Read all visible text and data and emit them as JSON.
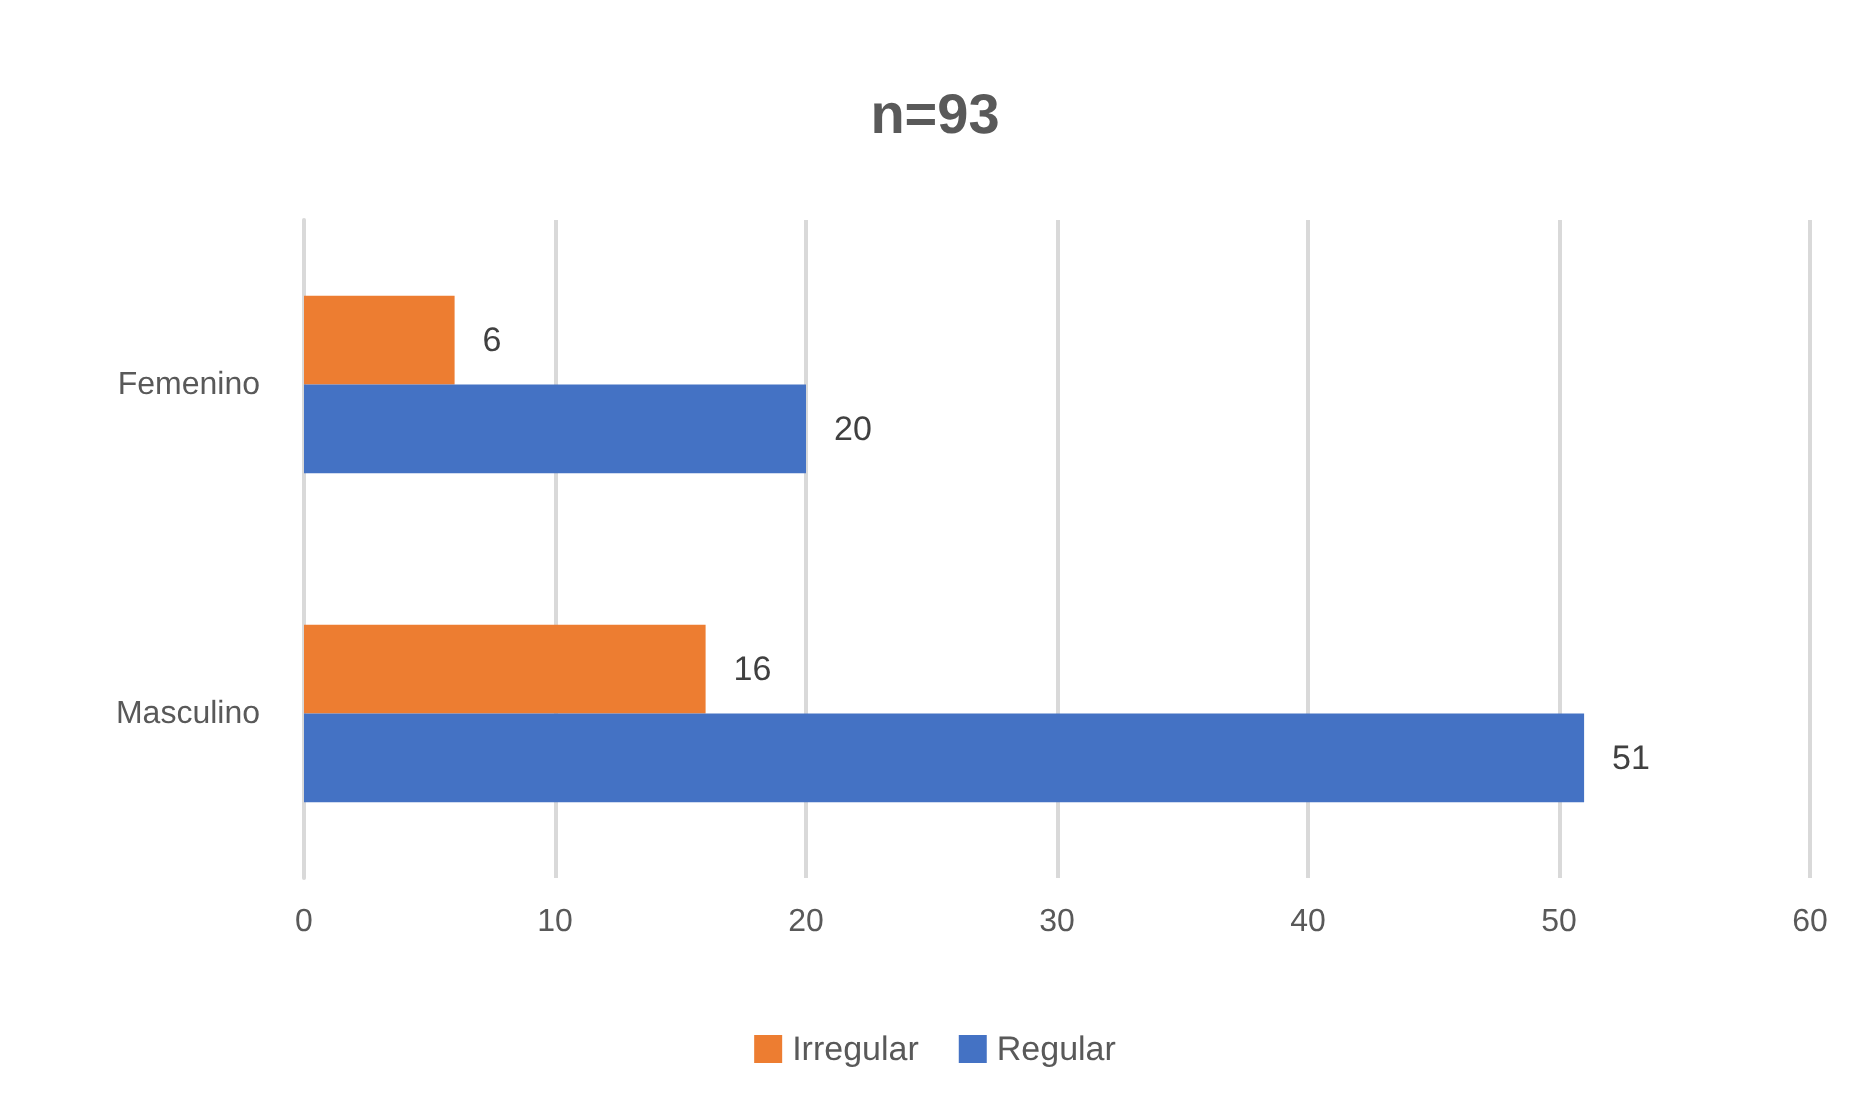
{
  "chart_data": {
    "type": "bar",
    "orientation": "horizontal",
    "title": "n=93",
    "categories": [
      "Femenino",
      "Masculino"
    ],
    "series": [
      {
        "name": "Irregular",
        "color": "#ed7d31",
        "values": [
          6,
          16
        ]
      },
      {
        "name": "Regular",
        "color": "#4472c4",
        "values": [
          20,
          51
        ]
      }
    ],
    "xlim": [
      0,
      60
    ],
    "xticks": [
      0,
      10,
      20,
      30,
      40,
      50,
      60
    ],
    "grid": "x",
    "legend": "bottom",
    "data_labels": true
  }
}
